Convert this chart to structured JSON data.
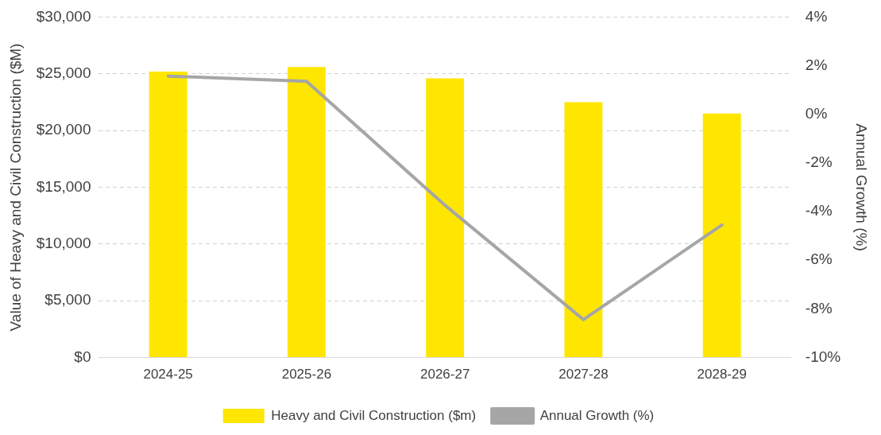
{
  "chart_data": {
    "type": "bar",
    "categories": [
      "2024-25",
      "2025-26",
      "2026-27",
      "2027-28",
      "2028-29"
    ],
    "ylabel": "Value of Heavy and Civil Construction ($M)",
    "y2label": "Annual Growth (%)",
    "series": [
      {
        "name": "Heavy and Civil Construction ($m)",
        "color": "#ffe600",
        "values": [
          25200,
          25600,
          24600,
          22500,
          21500
        ]
      },
      {
        "name": "Annual Growth (%)",
        "type": "line",
        "axis": "y2",
        "color": "#a6a6a6",
        "values": [
          1.57,
          1.36,
          -3.74,
          -8.44,
          -4.55
        ]
      }
    ],
    "ylim": [
      0,
      30000
    ],
    "yticks": [
      {
        "value": 0,
        "label": "$0"
      },
      {
        "value": 5000,
        "label": "$5,000"
      },
      {
        "value": 10000,
        "label": "$10,000"
      },
      {
        "value": 15000,
        "label": "$15,000"
      },
      {
        "value": 20000,
        "label": "$20,000"
      },
      {
        "value": 25000,
        "label": "$25,000"
      },
      {
        "value": 30000,
        "label": "$30,000"
      }
    ],
    "y2lim": [
      -10,
      4
    ],
    "y2ticks": [
      {
        "value": -10,
        "label": "-10%"
      },
      {
        "value": -8,
        "label": "-8%"
      },
      {
        "value": -6,
        "label": "-6%"
      },
      {
        "value": -4,
        "label": "-4%"
      },
      {
        "value": -2,
        "label": "-2%"
      },
      {
        "value": 0,
        "label": "0%"
      },
      {
        "value": 2,
        "label": "2%"
      },
      {
        "value": 4,
        "label": "4%"
      }
    ],
    "grid": "y",
    "legend": "bottom",
    "marker": "none",
    "line_style": "solid"
  }
}
